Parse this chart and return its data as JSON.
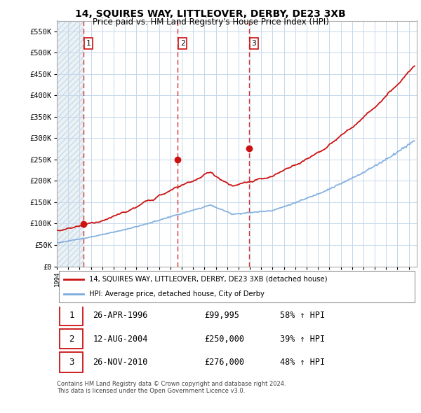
{
  "title": "14, SQUIRES WAY, LITTLEOVER, DERBY, DE23 3XB",
  "subtitle": "Price paid vs. HM Land Registry's House Price Index (HPI)",
  "ylabel_values": [
    "£0",
    "£50K",
    "£100K",
    "£150K",
    "£200K",
    "£250K",
    "£300K",
    "£350K",
    "£400K",
    "£450K",
    "£500K",
    "£550K"
  ],
  "ytick_values": [
    0,
    50000,
    100000,
    150000,
    200000,
    250000,
    300000,
    350000,
    400000,
    450000,
    500000,
    550000
  ],
  "xmin": 1994.0,
  "xmax": 2025.7,
  "ymin": 0,
  "ymax": 575000,
  "sale_dates": [
    1996.32,
    2004.62,
    2010.91
  ],
  "sale_prices": [
    99995,
    250000,
    276000
  ],
  "sale_labels": [
    "1",
    "2",
    "3"
  ],
  "hpi_line_color": "#7aaadd",
  "price_line_color": "#cc1111",
  "sale_marker_color": "#cc1111",
  "vline_color": "#cc1111",
  "grid_color": "#c5d8ea",
  "hatch_bg_color": "#dce8f0",
  "background_color": "#ffffff",
  "legend_line1": "14, SQUIRES WAY, LITTLEOVER, DERBY, DE23 3XB (detached house)",
  "legend_line2": "HPI: Average price, detached house, City of Derby",
  "table_rows": [
    [
      "1",
      "26-APR-1996",
      "£99,995",
      "58% ↑ HPI"
    ],
    [
      "2",
      "12-AUG-2004",
      "£250,000",
      "39% ↑ HPI"
    ],
    [
      "3",
      "26-NOV-2010",
      "£276,000",
      "48% ↑ HPI"
    ]
  ],
  "footer_text": "Contains HM Land Registry data © Crown copyright and database right 2024.\nThis data is licensed under the Open Government Licence v3.0."
}
